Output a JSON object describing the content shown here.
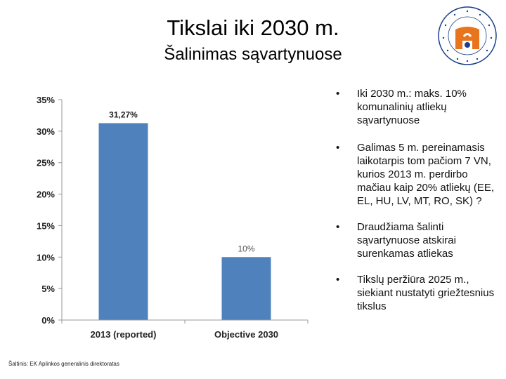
{
  "header": {
    "title": "Tikslai iki 2030 m.",
    "subtitle": "Šalinimas sąvartynuose"
  },
  "logo": {
    "ring_text": "LIETUVOS RESPUBLIKOS APLINKOS MINISTERIJA",
    "colors": {
      "ring": "#1a3e8c",
      "shield": "#e8741e"
    }
  },
  "chart_data": {
    "type": "bar",
    "categories": [
      "2013 (reported)",
      "Objective 2030"
    ],
    "values": [
      31.27,
      10
    ],
    "data_labels": [
      "31,27%",
      "10%"
    ],
    "ylim": [
      0,
      35
    ],
    "yticks": [
      0,
      5,
      10,
      15,
      20,
      25,
      30,
      35
    ],
    "ytick_labels": [
      "0%",
      "5%",
      "10%",
      "15%",
      "20%",
      "25%",
      "30%",
      "35%"
    ],
    "title": "",
    "xlabel": "",
    "ylabel": "",
    "grid": false,
    "bar_color": "#4f81bd"
  },
  "bullets": {
    "marker": "•",
    "items": [
      "Iki 2030 m.: maks. 10% komunalinių atliekų sąvartynuose",
      "Galimas 5 m. pereinamasis laikotarpis tom pačiom 7 VN, kurios 2013 m. perdirbo mačiau kaip 20% atliekų (EE, EL, HU, LV, MT, RO, SK) ?",
      "Draudžiama šalinti sąvartynuose atskirai surenkamas atliekas",
      "Tikslų peržiūra 2025 m., siekiant nustatyti griežtesnius tikslus"
    ]
  },
  "source": "Šaltinis: EK Aplinkos generalinis direktoratas"
}
